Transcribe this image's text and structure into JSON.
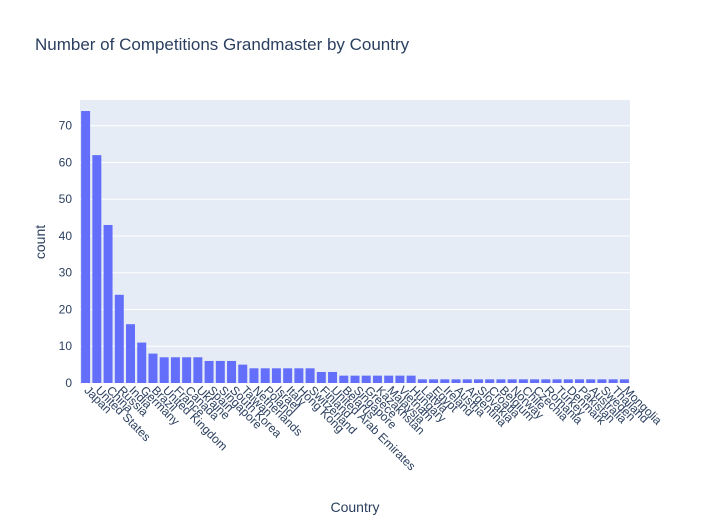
{
  "chart_data": {
    "type": "bar",
    "title": "Number of Competitions Grandmaster by Country",
    "xlabel": "Country",
    "ylabel": "count",
    "ylim": [
      0,
      77
    ],
    "yticks": [
      0,
      10,
      20,
      30,
      40,
      50,
      60,
      70
    ],
    "grid": true,
    "bar_color": "#636efa",
    "plot_bg": "#e5ecf6",
    "text_color": "#2a3f5f",
    "categories": [
      "Japan",
      "United States",
      "China",
      "Russia",
      "India",
      "Germany",
      "Brazil",
      "United Kingdom",
      "France",
      "Canada",
      "Ukraine",
      "Spain",
      "Singapore",
      "South Korea",
      "Taiwan",
      "Netherlands",
      "Poland",
      "Israel",
      "Italy",
      "Hong Kong",
      "Switzerland",
      "Finland",
      "United Arab Emirates",
      "Belarus",
      "Singapore",
      "Greece",
      "Kazakhstan",
      "Malaysia",
      "Vietnam",
      "Hungary",
      "Latvia",
      "Egypt",
      "Ireland",
      "Austria",
      "Argentina",
      "Slovakia",
      "Croatia",
      "Belgium",
      "Norway",
      "Chile",
      "Czechia",
      "Romania",
      "Turkey",
      "Denmark",
      "Pakistan",
      "Australia",
      "Sweden",
      "Thailand",
      "Mongolia"
    ],
    "values": [
      74,
      62,
      43,
      24,
      16,
      11,
      8,
      7,
      7,
      7,
      7,
      6,
      6,
      6,
      5,
      4,
      4,
      4,
      4,
      4,
      4,
      3,
      3,
      2,
      2,
      2,
      2,
      2,
      2,
      2,
      1,
      1,
      1,
      1,
      1,
      1,
      1,
      1,
      1,
      1,
      1,
      1,
      1,
      1,
      1,
      1,
      1,
      1,
      1
    ]
  }
}
